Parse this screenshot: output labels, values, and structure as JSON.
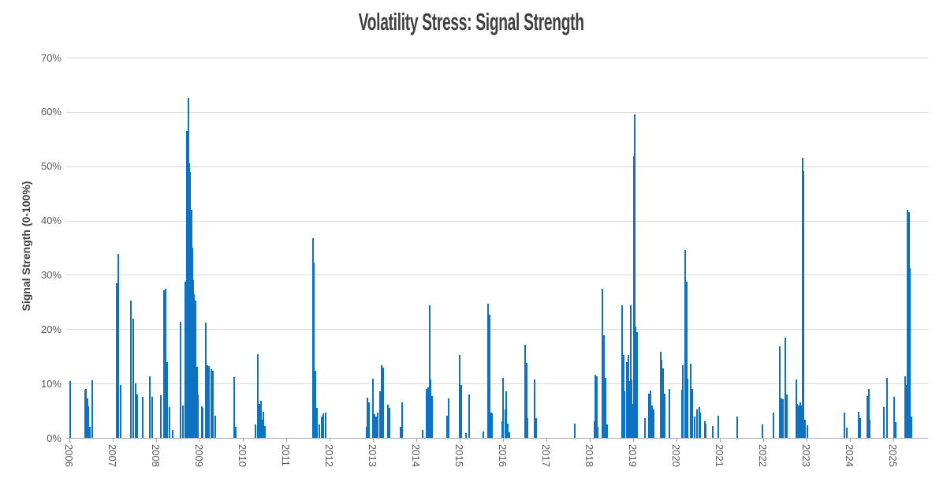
{
  "colors": {
    "bar": "#0e72c2",
    "grid": "#d9d9d9",
    "axis": "#a9a9a9",
    "tick_label": "#595959",
    "title": "#404040"
  },
  "chart_data": {
    "type": "bar",
    "title": "Volatility Stress: Signal Strength",
    "xlabel": "",
    "ylabel": "Signal Strength (0-100%)",
    "y_unit": "percent",
    "x_unit": "fractional year",
    "ylim": [
      0,
      70
    ],
    "xlim": [
      2005.93,
      2025.8
    ],
    "grid": true,
    "legend": false,
    "y_ticks": [
      {
        "value": 0,
        "label": "0%"
      },
      {
        "value": 10,
        "label": "10%"
      },
      {
        "value": 20,
        "label": "20%"
      },
      {
        "value": 30,
        "label": "30%"
      },
      {
        "value": 40,
        "label": "40%"
      },
      {
        "value": 50,
        "label": "50%"
      },
      {
        "value": 60,
        "label": "60%"
      },
      {
        "value": 70,
        "label": "70%"
      }
    ],
    "x_ticks": [
      {
        "value": 2006,
        "label": "2006"
      },
      {
        "value": 2007,
        "label": "2007"
      },
      {
        "value": 2008,
        "label": "2008"
      },
      {
        "value": 2009,
        "label": "2009"
      },
      {
        "value": 2010,
        "label": "2010"
      },
      {
        "value": 2011,
        "label": "2011"
      },
      {
        "value": 2012,
        "label": "2012"
      },
      {
        "value": 2013,
        "label": "2013"
      },
      {
        "value": 2014,
        "label": "2014"
      },
      {
        "value": 2015,
        "label": "2015"
      },
      {
        "value": 2016,
        "label": "2016"
      },
      {
        "value": 2017,
        "label": "2017"
      },
      {
        "value": 2018,
        "label": "2018"
      },
      {
        "value": 2019,
        "label": "2019"
      },
      {
        "value": 2020,
        "label": "2020"
      },
      {
        "value": 2021,
        "label": "2021"
      },
      {
        "value": 2022,
        "label": "2022"
      },
      {
        "value": 2023,
        "label": "2023"
      },
      {
        "value": 2024,
        "label": "2024"
      },
      {
        "value": 2025,
        "label": "2025"
      }
    ],
    "bars": [
      [
        2006.02,
        10.4
      ],
      [
        2006.36,
        8.8
      ],
      [
        2006.39,
        9.0
      ],
      [
        2006.41,
        7.3
      ],
      [
        2006.44,
        5.8
      ],
      [
        2006.47,
        2.0
      ],
      [
        2006.53,
        10.6
      ],
      [
        2007.09,
        28.4
      ],
      [
        2007.13,
        33.8
      ],
      [
        2007.18,
        9.8
      ],
      [
        2007.42,
        25.3
      ],
      [
        2007.48,
        22.0
      ],
      [
        2007.52,
        10.0
      ],
      [
        2007.56,
        8.0
      ],
      [
        2007.69,
        7.5
      ],
      [
        2007.85,
        11.4
      ],
      [
        2007.91,
        7.5
      ],
      [
        2008.1,
        7.9
      ],
      [
        2008.19,
        27.2
      ],
      [
        2008.22,
        27.5
      ],
      [
        2008.25,
        13.9
      ],
      [
        2008.31,
        5.6
      ],
      [
        2008.38,
        1.5
      ],
      [
        2008.56,
        21.3
      ],
      [
        2008.62,
        5.9
      ],
      [
        2008.68,
        28.8
      ],
      [
        2008.71,
        56.5
      ],
      [
        2008.74,
        62.6
      ],
      [
        2008.76,
        50.5
      ],
      [
        2008.79,
        49.0
      ],
      [
        2008.81,
        42.0
      ],
      [
        2008.83,
        35.0
      ],
      [
        2008.85,
        29.0
      ],
      [
        2008.88,
        26.4
      ],
      [
        2008.91,
        25.2
      ],
      [
        2008.94,
        13.0
      ],
      [
        2008.97,
        8.0
      ],
      [
        2009.05,
        5.8
      ],
      [
        2009.08,
        5.5
      ],
      [
        2009.15,
        21.2
      ],
      [
        2009.19,
        13.4
      ],
      [
        2009.22,
        13.2
      ],
      [
        2009.28,
        12.6
      ],
      [
        2009.31,
        12.4
      ],
      [
        2009.36,
        4.0
      ],
      [
        2009.8,
        11.2
      ],
      [
        2009.83,
        2.0
      ],
      [
        2010.29,
        2.5
      ],
      [
        2010.34,
        15.4
      ],
      [
        2010.38,
        6.3
      ],
      [
        2010.41,
        6.8
      ],
      [
        2010.44,
        3.4
      ],
      [
        2010.47,
        4.8
      ],
      [
        2010.5,
        2.2
      ],
      [
        2011.61,
        36.7
      ],
      [
        2011.64,
        32.3
      ],
      [
        2011.67,
        12.3
      ],
      [
        2011.7,
        5.5
      ],
      [
        2011.76,
        2.5
      ],
      [
        2011.81,
        3.9
      ],
      [
        2011.86,
        4.5
      ],
      [
        2011.91,
        4.6
      ],
      [
        2012.85,
        2.0
      ],
      [
        2012.87,
        7.4
      ],
      [
        2012.91,
        6.5
      ],
      [
        2013.0,
        10.9
      ],
      [
        2013.04,
        4.4
      ],
      [
        2013.07,
        3.9
      ],
      [
        2013.1,
        4.7
      ],
      [
        2013.16,
        8.5
      ],
      [
        2013.2,
        13.3
      ],
      [
        2013.23,
        12.9
      ],
      [
        2013.35,
        6.1
      ],
      [
        2013.38,
        5.5
      ],
      [
        2013.64,
        2.0
      ],
      [
        2013.67,
        6.6
      ],
      [
        2014.15,
        1.5
      ],
      [
        2014.24,
        9.0
      ],
      [
        2014.27,
        9.3
      ],
      [
        2014.31,
        24.4
      ],
      [
        2014.33,
        10.8
      ],
      [
        2014.36,
        7.7
      ],
      [
        2014.71,
        4.1
      ],
      [
        2014.74,
        7.3
      ],
      [
        2015.0,
        15.3
      ],
      [
        2015.03,
        9.7
      ],
      [
        2015.15,
        0.8
      ],
      [
        2015.22,
        8.0
      ],
      [
        2015.55,
        1.2
      ],
      [
        2015.66,
        24.7
      ],
      [
        2015.69,
        22.6
      ],
      [
        2015.72,
        4.7
      ],
      [
        2015.75,
        4.5
      ],
      [
        2015.98,
        3.1
      ],
      [
        2016.0,
        11.0
      ],
      [
        2016.05,
        5.3
      ],
      [
        2016.08,
        8.6
      ],
      [
        2016.11,
        2.6
      ],
      [
        2016.14,
        1.0
      ],
      [
        2016.51,
        17.2
      ],
      [
        2016.55,
        13.8
      ],
      [
        2016.57,
        3.6
      ],
      [
        2016.73,
        10.8
      ],
      [
        2016.76,
        3.6
      ],
      [
        2017.66,
        2.6
      ],
      [
        2018.1,
        3.1
      ],
      [
        2018.13,
        11.6
      ],
      [
        2018.16,
        11.4
      ],
      [
        2018.19,
        2.0
      ],
      [
        2018.29,
        27.5
      ],
      [
        2018.32,
        18.9
      ],
      [
        2018.36,
        11.0
      ],
      [
        2018.4,
        2.5
      ],
      [
        2018.75,
        24.4
      ],
      [
        2018.78,
        15.3
      ],
      [
        2018.8,
        8.5
      ],
      [
        2018.86,
        14.0
      ],
      [
        2018.89,
        15.3
      ],
      [
        2018.92,
        10.4
      ],
      [
        2018.94,
        24.4
      ],
      [
        2018.97,
        10.7
      ],
      [
        2019.0,
        6.3
      ],
      [
        2019.02,
        51.8
      ],
      [
        2019.04,
        59.5
      ],
      [
        2019.06,
        20.5
      ],
      [
        2019.09,
        19.4
      ],
      [
        2019.27,
        3.6
      ],
      [
        2019.37,
        8.2
      ],
      [
        2019.4,
        8.7
      ],
      [
        2019.44,
        6.0
      ],
      [
        2019.47,
        5.3
      ],
      [
        2019.63,
        15.9
      ],
      [
        2019.66,
        14.4
      ],
      [
        2019.69,
        12.8
      ],
      [
        2019.72,
        8.2
      ],
      [
        2019.84,
        9.0
      ],
      [
        2020.13,
        8.9
      ],
      [
        2020.15,
        13.3
      ],
      [
        2020.2,
        34.6
      ],
      [
        2020.23,
        28.8
      ],
      [
        2020.26,
        10.9
      ],
      [
        2020.33,
        13.6
      ],
      [
        2020.36,
        9.0
      ],
      [
        2020.42,
        3.9
      ],
      [
        2020.47,
        5.3
      ],
      [
        2020.52,
        5.6
      ],
      [
        2020.55,
        4.6
      ],
      [
        2020.65,
        3.0
      ],
      [
        2020.68,
        2.6
      ],
      [
        2020.84,
        2.2
      ],
      [
        2020.97,
        4.1
      ],
      [
        2021.4,
        3.9
      ],
      [
        2021.98,
        2.4
      ],
      [
        2022.24,
        4.6
      ],
      [
        2022.38,
        16.9
      ],
      [
        2022.42,
        7.3
      ],
      [
        2022.45,
        7.1
      ],
      [
        2022.51,
        18.4
      ],
      [
        2022.54,
        8.0
      ],
      [
        2022.76,
        10.7
      ],
      [
        2022.79,
        6.2
      ],
      [
        2022.82,
        5.9
      ],
      [
        2022.85,
        6.5
      ],
      [
        2022.87,
        6.0
      ],
      [
        2022.91,
        51.6
      ],
      [
        2022.93,
        49.1
      ],
      [
        2022.96,
        3.3
      ],
      [
        2023.02,
        2.3
      ],
      [
        2023.88,
        4.6
      ],
      [
        2023.92,
        1.9
      ],
      [
        2024.2,
        4.8
      ],
      [
        2024.23,
        3.6
      ],
      [
        2024.4,
        7.7
      ],
      [
        2024.43,
        9.0
      ],
      [
        2024.46,
        3.4
      ],
      [
        2024.78,
        5.7
      ],
      [
        2024.85,
        11.0
      ],
      [
        2025.02,
        7.5
      ],
      [
        2025.06,
        2.9
      ],
      [
        2025.27,
        11.4
      ],
      [
        2025.3,
        9.7
      ],
      [
        2025.33,
        41.9
      ],
      [
        2025.36,
        41.5
      ],
      [
        2025.38,
        31.2
      ],
      [
        2025.41,
        3.9
      ]
    ]
  }
}
